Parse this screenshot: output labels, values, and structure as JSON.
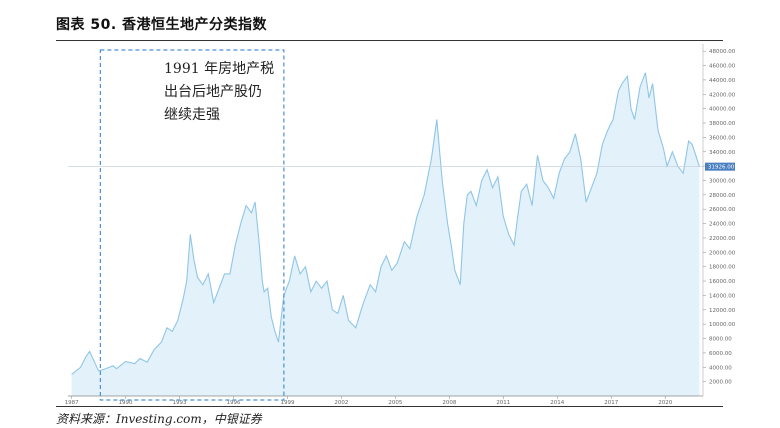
{
  "title": "图表 50. 香港恒生地产分类指数",
  "source": "资料来源：Investing.com，中银证券",
  "annotation": [
    "1991 年房地产税",
    "出台后地产股仍",
    "继续走强"
  ],
  "last_value_label": "31926.00",
  "colors": {
    "line": "#8fc6e6",
    "fill": "#e3f1fa",
    "box": "#4a90d9",
    "marker": "#4a7fc1"
  },
  "chart_data": {
    "type": "area",
    "title": "",
    "xlabel": "",
    "ylabel": "",
    "xlim": [
      1986.8,
      2022.1
    ],
    "ylim": [
      0,
      49000
    ],
    "x_ticks": [
      "1987",
      "1990",
      "1993",
      "1996",
      "1999",
      "2002",
      "2005",
      "2008",
      "2011",
      "2014",
      "2017",
      "2020"
    ],
    "y_ticks": [
      "2000.00",
      "4000.00",
      "6000.00",
      "8000.00",
      "10000.00",
      "12000.00",
      "14000.00",
      "16000.00",
      "18000.00",
      "20000.00",
      "22000.00",
      "24000.00",
      "26000.00",
      "28000.00",
      "30000.00",
      "32000.00",
      "34000.00",
      "36000.00",
      "38000.00",
      "40000.00",
      "42000.00",
      "44000.00",
      "46000.00",
      "48000.00"
    ],
    "last_value": 31926,
    "highlight_period": [
      1988.6,
      1998.8
    ],
    "x": [
      1987.0,
      1987.5,
      1987.8,
      1988.0,
      1988.5,
      1988.8,
      1989.3,
      1989.5,
      1990.0,
      1990.5,
      1990.8,
      1991.2,
      1991.6,
      1992.0,
      1992.3,
      1992.6,
      1992.9,
      1993.2,
      1993.4,
      1993.6,
      1993.8,
      1994.0,
      1994.3,
      1994.6,
      1994.9,
      1995.2,
      1995.5,
      1995.8,
      1996.1,
      1996.4,
      1996.7,
      1997.0,
      1997.2,
      1997.4,
      1997.6,
      1997.7,
      1997.9,
      1998.1,
      1998.3,
      1998.5,
      1998.7,
      1998.8,
      1999.1,
      1999.4,
      1999.7,
      2000.0,
      2000.3,
      2000.6,
      2000.9,
      2001.2,
      2001.5,
      2001.8,
      2002.1,
      2002.4,
      2002.8,
      2003.1,
      2003.3,
      2003.6,
      2003.9,
      2004.2,
      2004.5,
      2004.8,
      2005.1,
      2005.5,
      2005.8,
      2006.2,
      2006.6,
      2007.0,
      2007.3,
      2007.6,
      2007.9,
      2008.1,
      2008.3,
      2008.6,
      2008.8,
      2009.0,
      2009.2,
      2009.5,
      2009.8,
      2010.1,
      2010.4,
      2010.7,
      2011.0,
      2011.3,
      2011.6,
      2011.8,
      2012.0,
      2012.3,
      2012.6,
      2012.9,
      2013.2,
      2013.5,
      2013.8,
      2014.1,
      2014.4,
      2014.7,
      2015.0,
      2015.3,
      2015.6,
      2015.9,
      2016.2,
      2016.5,
      2016.8,
      2017.1,
      2017.4,
      2017.6,
      2017.9,
      2018.1,
      2018.3,
      2018.6,
      2018.9,
      2019.1,
      2019.3,
      2019.6,
      2019.9,
      2020.1,
      2020.4,
      2020.7,
      2021.0,
      2021.3,
      2021.5,
      2021.7,
      2021.9
    ],
    "y": [
      3000,
      4000,
      5500,
      6200,
      3500,
      3700,
      4200,
      3800,
      4800,
      4500,
      5200,
      4700,
      6500,
      7500,
      9500,
      9000,
      10500,
      13500,
      16000,
      22500,
      19000,
      16500,
      15500,
      17000,
      13000,
      15000,
      17000,
      17000,
      21000,
      24000,
      26500,
      25500,
      27000,
      22000,
      16000,
      14500,
      15000,
      11000,
      9000,
      7500,
      12000,
      14000,
      16000,
      19500,
      17000,
      18000,
      14500,
      16000,
      15000,
      16000,
      12000,
      11500,
      14000,
      10500,
      9500,
      12000,
      13500,
      15500,
      14500,
      18000,
      19500,
      17500,
      18500,
      21500,
      20500,
      25000,
      28000,
      33000,
      38500,
      30000,
      24000,
      21000,
      17500,
      15500,
      24000,
      28000,
      28500,
      26500,
      30000,
      31500,
      29000,
      30500,
      25000,
      22500,
      21000,
      25000,
      28500,
      29500,
      26500,
      33500,
      30000,
      29000,
      27500,
      31000,
      33000,
      34000,
      36500,
      33000,
      27000,
      29000,
      31000,
      35000,
      37000,
      38500,
      42500,
      43500,
      44500,
      40000,
      38500,
      43000,
      45000,
      41500,
      43500,
      37000,
      34500,
      32000,
      34000,
      32000,
      31000,
      35500,
      35000,
      33500,
      31926
    ]
  }
}
